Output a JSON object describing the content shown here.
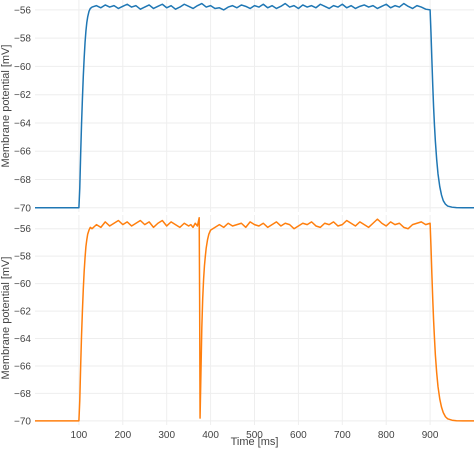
{
  "chart_data": [
    {
      "type": "line",
      "title": "",
      "xlabel": "",
      "ylabel": "Membrane potential [mV]",
      "xlim": [
        0,
        1000
      ],
      "ylim": [
        -70.3,
        -55.3
      ],
      "yticks": [
        -70,
        -68,
        -66,
        -64,
        -62,
        -60,
        -58,
        -56
      ],
      "ytick_labels": [
        "−70",
        "−68",
        "−66",
        "−64",
        "−62",
        "−60",
        "−58",
        "−56"
      ],
      "grid": true,
      "series": [
        {
          "color": "#1f77b4",
          "x": [
            0,
            100,
            102,
            104,
            106,
            108,
            110,
            112,
            114,
            116,
            118,
            120,
            123,
            126,
            130,
            140,
            150,
            160,
            170,
            180,
            190,
            200,
            210,
            220,
            230,
            240,
            250,
            260,
            270,
            280,
            290,
            300,
            310,
            320,
            330,
            340,
            350,
            360,
            370,
            380,
            390,
            400,
            410,
            420,
            430,
            440,
            450,
            460,
            470,
            480,
            490,
            500,
            510,
            520,
            530,
            540,
            550,
            560,
            570,
            580,
            590,
            600,
            610,
            620,
            630,
            640,
            650,
            660,
            670,
            680,
            690,
            700,
            710,
            720,
            730,
            740,
            750,
            760,
            770,
            780,
            790,
            800,
            810,
            820,
            830,
            840,
            850,
            860,
            870,
            880,
            890,
            900,
            902,
            904,
            906,
            908,
            910,
            912,
            915,
            918,
            922,
            926,
            930,
            935,
            940,
            950,
            960,
            975,
            1000
          ],
          "y": [
            -70,
            -70,
            -68.6,
            -66.2,
            -64.1,
            -62.3,
            -60.7,
            -59.4,
            -58.3,
            -57.5,
            -56.9,
            -56.5,
            -56.1,
            -55.9,
            -55.8,
            -55.7,
            -55.85,
            -55.65,
            -55.8,
            -55.7,
            -55.9,
            -55.75,
            -55.6,
            -55.8,
            -55.7,
            -55.95,
            -55.8,
            -55.65,
            -55.9,
            -55.75,
            -55.6,
            -55.85,
            -55.7,
            -55.95,
            -55.8,
            -55.6,
            -55.75,
            -55.9,
            -55.7,
            -55.55,
            -55.8,
            -55.7,
            -55.9,
            -55.85,
            -56.0,
            -55.8,
            -55.7,
            -55.85,
            -55.65,
            -55.75,
            -55.9,
            -55.7,
            -55.8,
            -55.6,
            -55.85,
            -55.7,
            -55.9,
            -55.75,
            -55.55,
            -55.8,
            -55.7,
            -55.9,
            -55.65,
            -55.8,
            -55.7,
            -55.85,
            -55.6,
            -55.75,
            -55.9,
            -55.7,
            -55.8,
            -55.6,
            -55.85,
            -55.7,
            -55.9,
            -55.75,
            -55.65,
            -55.8,
            -55.7,
            -55.9,
            -55.75,
            -55.6,
            -55.85,
            -55.7,
            -55.8,
            -55.55,
            -55.75,
            -55.9,
            -55.7,
            -55.8,
            -55.95,
            -56.0,
            -57.6,
            -59.5,
            -61.3,
            -62.9,
            -64.2,
            -65.3,
            -66.6,
            -67.6,
            -68.5,
            -69.1,
            -69.5,
            -69.75,
            -69.88,
            -69.96,
            -69.99,
            -70,
            -70
          ]
        }
      ]
    },
    {
      "type": "line",
      "title": "",
      "xlabel": "Time [ms]",
      "ylabel": "Membrane potential [mV]",
      "xlim": [
        0,
        1000
      ],
      "ylim": [
        -70.3,
        -55.0
      ],
      "xticks": [
        100,
        200,
        300,
        400,
        500,
        600,
        700,
        800,
        900
      ],
      "xtick_labels": [
        "100",
        "200",
        "300",
        "400",
        "500",
        "600",
        "700",
        "800",
        "900"
      ],
      "yticks": [
        -70,
        -68,
        -66,
        -64,
        -62,
        -60,
        -58,
        -56
      ],
      "ytick_labels": [
        "−70",
        "−68",
        "−66",
        "−64",
        "−62",
        "−60",
        "−58",
        "−56"
      ],
      "grid": true,
      "series": [
        {
          "color": "#ff7f0e",
          "x": [
            0,
            100,
            102,
            104,
            106,
            108,
            110,
            112,
            114,
            116,
            118,
            120,
            123,
            126,
            130,
            140,
            150,
            160,
            170,
            180,
            190,
            200,
            210,
            220,
            230,
            240,
            250,
            260,
            270,
            280,
            290,
            300,
            310,
            320,
            330,
            340,
            350,
            355,
            360,
            365,
            370,
            374,
            375,
            376,
            378,
            380,
            382,
            384,
            386,
            388,
            390,
            393,
            396,
            400,
            405,
            410,
            420,
            430,
            440,
            450,
            460,
            470,
            480,
            490,
            500,
            510,
            520,
            530,
            540,
            550,
            560,
            570,
            580,
            590,
            600,
            610,
            620,
            630,
            640,
            650,
            660,
            670,
            680,
            690,
            700,
            710,
            720,
            730,
            740,
            750,
            760,
            770,
            780,
            790,
            800,
            810,
            820,
            830,
            840,
            850,
            860,
            870,
            880,
            890,
            900,
            902,
            904,
            906,
            908,
            910,
            912,
            915,
            918,
            922,
            926,
            930,
            935,
            940,
            950,
            960,
            975,
            1000
          ],
          "y": [
            -70,
            -70,
            -68.5,
            -66.0,
            -63.8,
            -62.0,
            -60.4,
            -59.1,
            -58.1,
            -57.3,
            -56.8,
            -56.4,
            -56.1,
            -55.9,
            -56.0,
            -55.7,
            -55.9,
            -55.5,
            -55.8,
            -55.6,
            -55.4,
            -55.7,
            -55.5,
            -55.8,
            -55.6,
            -55.4,
            -55.7,
            -55.5,
            -55.9,
            -55.6,
            -55.4,
            -55.8,
            -55.5,
            -55.7,
            -55.9,
            -55.6,
            -55.8,
            -55.7,
            -55.9,
            -55.6,
            -55.8,
            -55.2,
            -61.0,
            -69.8,
            -66.5,
            -63.2,
            -61.1,
            -59.7,
            -58.7,
            -58.0,
            -57.4,
            -56.8,
            -56.4,
            -56.1,
            -56.0,
            -55.9,
            -55.7,
            -55.9,
            -55.6,
            -55.8,
            -55.7,
            -55.6,
            -55.9,
            -55.5,
            -55.7,
            -55.8,
            -55.6,
            -55.9,
            -55.7,
            -55.5,
            -55.8,
            -55.6,
            -55.7,
            -56.0,
            -55.8,
            -55.6,
            -55.7,
            -55.5,
            -55.8,
            -55.9,
            -55.6,
            -55.7,
            -55.5,
            -55.8,
            -55.7,
            -55.4,
            -55.6,
            -55.8,
            -55.5,
            -55.7,
            -55.9,
            -55.6,
            -55.3,
            -55.6,
            -55.8,
            -55.5,
            -55.7,
            -55.6,
            -55.9,
            -56.0,
            -55.7,
            -55.6,
            -55.5,
            -55.7,
            -55.6,
            -57.3,
            -59.3,
            -61.1,
            -62.7,
            -64.0,
            -65.2,
            -66.5,
            -67.5,
            -68.4,
            -69.0,
            -69.4,
            -69.7,
            -69.85,
            -69.95,
            -69.99,
            -70,
            -70
          ]
        }
      ]
    }
  ]
}
